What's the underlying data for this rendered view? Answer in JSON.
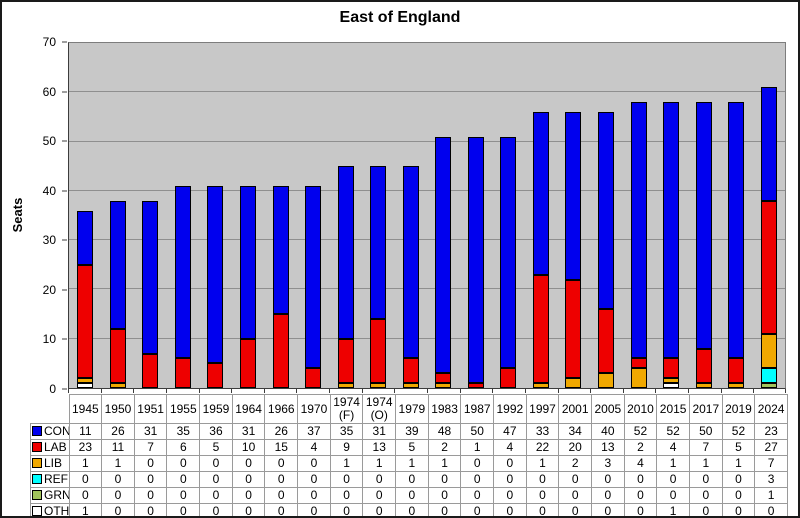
{
  "chart_data": {
    "type": "bar",
    "stacked": true,
    "title": "East of England",
    "xlabel": "",
    "ylabel": "Seats",
    "ylim": [
      0,
      70
    ],
    "ytick_step": 10,
    "grid": true,
    "plot_bg": "#c8c8c8",
    "grid_color": "#8f8f8f",
    "legend_position": "table-left",
    "categories": [
      "1945",
      "1950",
      "1951",
      "1955",
      "1959",
      "1964",
      "1966",
      "1970",
      "1974 (F)",
      "1974 (O)",
      "1979",
      "1983",
      "1987",
      "1992",
      "1997",
      "2001",
      "2005",
      "2010",
      "2015",
      "2017",
      "2019",
      "2024"
    ],
    "series": [
      {
        "name": "CON",
        "color": "#0000ee",
        "values": [
          11,
          26,
          31,
          35,
          36,
          31,
          26,
          37,
          35,
          31,
          39,
          48,
          50,
          47,
          33,
          34,
          40,
          52,
          52,
          50,
          52,
          23
        ]
      },
      {
        "name": "LAB",
        "color": "#ee0000",
        "values": [
          23,
          11,
          7,
          6,
          5,
          10,
          15,
          4,
          9,
          13,
          5,
          2,
          1,
          4,
          22,
          20,
          13,
          2,
          4,
          7,
          5,
          27
        ]
      },
      {
        "name": "LIB",
        "color": "#f0a800",
        "values": [
          1,
          1,
          0,
          0,
          0,
          0,
          0,
          0,
          1,
          1,
          1,
          1,
          0,
          0,
          1,
          2,
          3,
          4,
          1,
          1,
          1,
          7
        ]
      },
      {
        "name": "REF",
        "color": "#00ffff",
        "values": [
          0,
          0,
          0,
          0,
          0,
          0,
          0,
          0,
          0,
          0,
          0,
          0,
          0,
          0,
          0,
          0,
          0,
          0,
          0,
          0,
          0,
          3
        ]
      },
      {
        "name": "GRN",
        "color": "#a2c45c",
        "values": [
          0,
          0,
          0,
          0,
          0,
          0,
          0,
          0,
          0,
          0,
          0,
          0,
          0,
          0,
          0,
          0,
          0,
          0,
          0,
          0,
          0,
          1
        ]
      },
      {
        "name": "OTH",
        "color": "#ffffff",
        "values": [
          1,
          0,
          0,
          0,
          0,
          0,
          0,
          0,
          0,
          0,
          0,
          0,
          0,
          0,
          0,
          0,
          0,
          0,
          1,
          0,
          0,
          0
        ]
      }
    ],
    "stack_order_bottom_to_top": [
      "OTH",
      "GRN",
      "REF",
      "LIB",
      "LAB",
      "CON"
    ]
  }
}
